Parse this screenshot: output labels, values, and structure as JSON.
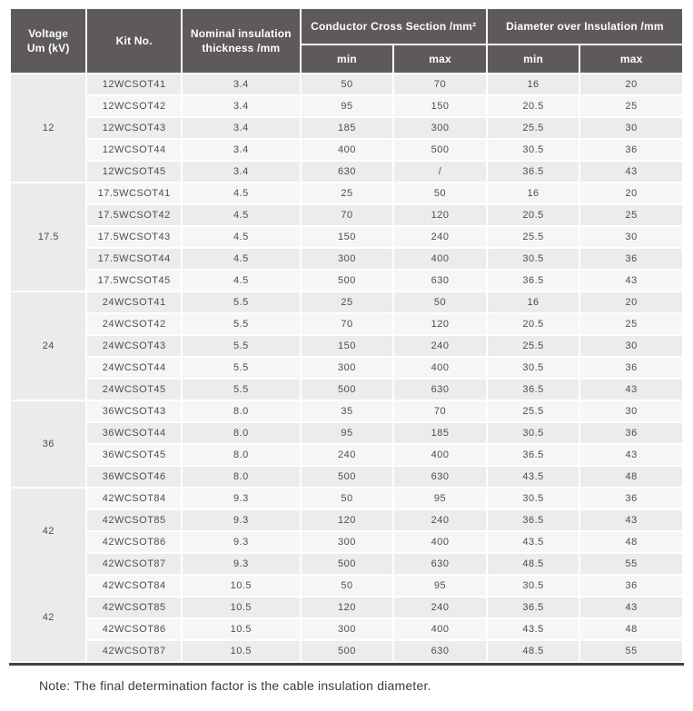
{
  "header": {
    "voltage": "Voltage\nUm (kV)",
    "kit": "Kit No.",
    "nominal": "Nominal insulation\nthickness /mm",
    "conductor_group": "Conductor Cross Section /mm²",
    "diameter_group": "Diameter over Insulation /mm",
    "min": "min",
    "max": "max"
  },
  "groups": [
    {
      "voltage": "12",
      "rows": [
        {
          "kit": "12WCSOT41",
          "thickness": "3.4",
          "ccs_min": "50",
          "ccs_max": "70",
          "doi_min": "16",
          "doi_max": "20"
        },
        {
          "kit": "12WCSOT42",
          "thickness": "3.4",
          "ccs_min": "95",
          "ccs_max": "150",
          "doi_min": "20.5",
          "doi_max": "25"
        },
        {
          "kit": "12WCSOT43",
          "thickness": "3.4",
          "ccs_min": "185",
          "ccs_max": "300",
          "doi_min": "25.5",
          "doi_max": "30"
        },
        {
          "kit": "12WCSOT44",
          "thickness": "3.4",
          "ccs_min": "400",
          "ccs_max": "500",
          "doi_min": "30.5",
          "doi_max": "36"
        },
        {
          "kit": "12WCSOT45",
          "thickness": "3.4",
          "ccs_min": "630",
          "ccs_max": "/",
          "doi_min": "36.5",
          "doi_max": "43"
        }
      ]
    },
    {
      "voltage": "17.5",
      "rows": [
        {
          "kit": "17.5WCSOT41",
          "thickness": "4.5",
          "ccs_min": "25",
          "ccs_max": "50",
          "doi_min": "16",
          "doi_max": "20"
        },
        {
          "kit": "17.5WCSOT42",
          "thickness": "4.5",
          "ccs_min": "70",
          "ccs_max": "120",
          "doi_min": "20.5",
          "doi_max": "25"
        },
        {
          "kit": "17.5WCSOT43",
          "thickness": "4.5",
          "ccs_min": "150",
          "ccs_max": "240",
          "doi_min": "25.5",
          "doi_max": "30"
        },
        {
          "kit": "17.5WCSOT44",
          "thickness": "4.5",
          "ccs_min": "300",
          "ccs_max": "400",
          "doi_min": "30.5",
          "doi_max": "36"
        },
        {
          "kit": "17.5WCSOT45",
          "thickness": "4.5",
          "ccs_min": "500",
          "ccs_max": "630",
          "doi_min": "36.5",
          "doi_max": "43"
        }
      ]
    },
    {
      "voltage": "24",
      "rows": [
        {
          "kit": "24WCSOT41",
          "thickness": "5.5",
          "ccs_min": "25",
          "ccs_max": "50",
          "doi_min": "16",
          "doi_max": "20"
        },
        {
          "kit": "24WCSOT42",
          "thickness": "5.5",
          "ccs_min": "70",
          "ccs_max": "120",
          "doi_min": "20.5",
          "doi_max": "25"
        },
        {
          "kit": "24WCSOT43",
          "thickness": "5.5",
          "ccs_min": "150",
          "ccs_max": "240",
          "doi_min": "25.5",
          "doi_max": "30"
        },
        {
          "kit": "24WCSOT44",
          "thickness": "5.5",
          "ccs_min": "300",
          "ccs_max": "400",
          "doi_min": "30.5",
          "doi_max": "36"
        },
        {
          "kit": "24WCSOT45",
          "thickness": "5.5",
          "ccs_min": "500",
          "ccs_max": "630",
          "doi_min": "36.5",
          "doi_max": "43"
        }
      ]
    },
    {
      "voltage": "36",
      "rows": [
        {
          "kit": "36WCSOT43",
          "thickness": "8.0",
          "ccs_min": "35",
          "ccs_max": "70",
          "doi_min": "25.5",
          "doi_max": "30"
        },
        {
          "kit": "36WCSOT44",
          "thickness": "8.0",
          "ccs_min": "95",
          "ccs_max": "185",
          "doi_min": "30.5",
          "doi_max": "36"
        },
        {
          "kit": "36WCSOT45",
          "thickness": "8.0",
          "ccs_min": "240",
          "ccs_max": "400",
          "doi_min": "36.5",
          "doi_max": "43"
        },
        {
          "kit": "36WCSOT46",
          "thickness": "8.0",
          "ccs_min": "500",
          "ccs_max": "630",
          "doi_min": "43.5",
          "doi_max": "48"
        }
      ]
    },
    {
      "voltage": "42",
      "rows": [
        {
          "kit": "42WCSOT84",
          "thickness": "9.3",
          "ccs_min": "50",
          "ccs_max": "95",
          "doi_min": "30.5",
          "doi_max": "36"
        },
        {
          "kit": "42WCSOT85",
          "thickness": "9.3",
          "ccs_min": "120",
          "ccs_max": "240",
          "doi_min": "36.5",
          "doi_max": "43"
        },
        {
          "kit": "42WCSOT86",
          "thickness": "9.3",
          "ccs_min": "300",
          "ccs_max": "400",
          "doi_min": "43.5",
          "doi_max": "48"
        },
        {
          "kit": "42WCSOT87",
          "thickness": "9.3",
          "ccs_min": "500",
          "ccs_max": "630",
          "doi_min": "48.5",
          "doi_max": "55"
        }
      ]
    },
    {
      "voltage": "42",
      "rows": [
        {
          "kit": "42WCSOT84",
          "thickness": "10.5",
          "ccs_min": "50",
          "ccs_max": "95",
          "doi_min": "30.5",
          "doi_max": "36"
        },
        {
          "kit": "42WCSOT85",
          "thickness": "10.5",
          "ccs_min": "120",
          "ccs_max": "240",
          "doi_min": "36.5",
          "doi_max": "43"
        },
        {
          "kit": "42WCSOT86",
          "thickness": "10.5",
          "ccs_min": "300",
          "ccs_max": "400",
          "doi_min": "43.5",
          "doi_max": "48"
        },
        {
          "kit": "42WCSOT87",
          "thickness": "10.5",
          "ccs_min": "500",
          "ccs_max": "630",
          "doi_min": "48.5",
          "doi_max": "55"
        }
      ]
    }
  ],
  "note": "Note: The final determination factor is the cable insulation diameter.",
  "colors": {
    "header_bg": "#5e5a5a",
    "header_text": "#ffffff",
    "row_dark": "#ececec",
    "row_light": "#f6f6f6",
    "voltage_col_bg": "#ebebeb",
    "body_text": "#4d4d4d",
    "bottom_rule": "#454142"
  }
}
